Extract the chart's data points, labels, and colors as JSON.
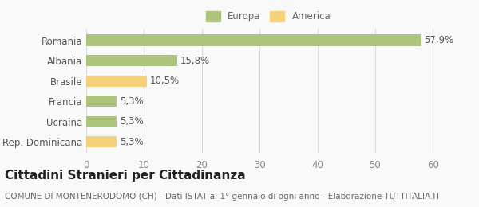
{
  "categories": [
    "Rep. Dominicana",
    "Ucraina",
    "Francia",
    "Brasile",
    "Albania",
    "Romania"
  ],
  "values": [
    5.3,
    5.3,
    5.3,
    10.5,
    15.8,
    57.9
  ],
  "labels": [
    "5,3%",
    "5,3%",
    "5,3%",
    "10,5%",
    "15,8%",
    "57,9%"
  ],
  "colors": [
    "#f5d27a",
    "#adc47d",
    "#adc47d",
    "#f5d27a",
    "#adc47d",
    "#adc47d"
  ],
  "legend_entries": [
    {
      "label": "Europa",
      "color": "#adc47d"
    },
    {
      "label": "America",
      "color": "#f5d27a"
    }
  ],
  "xlim": [
    0,
    63
  ],
  "xticks": [
    0,
    10,
    20,
    30,
    40,
    50,
    60
  ],
  "title": "Cittadini Stranieri per Cittadinanza",
  "subtitle": "COMUNE DI MONTENERODOMO (CH) - Dati ISTAT al 1° gennaio di ogni anno - Elaborazione TUTTITALIA.IT",
  "bar_height": 0.55,
  "background_color": "#f9f9f9",
  "label_fontsize": 8.5,
  "tick_fontsize": 8.5,
  "title_fontsize": 11,
  "subtitle_fontsize": 7.5
}
